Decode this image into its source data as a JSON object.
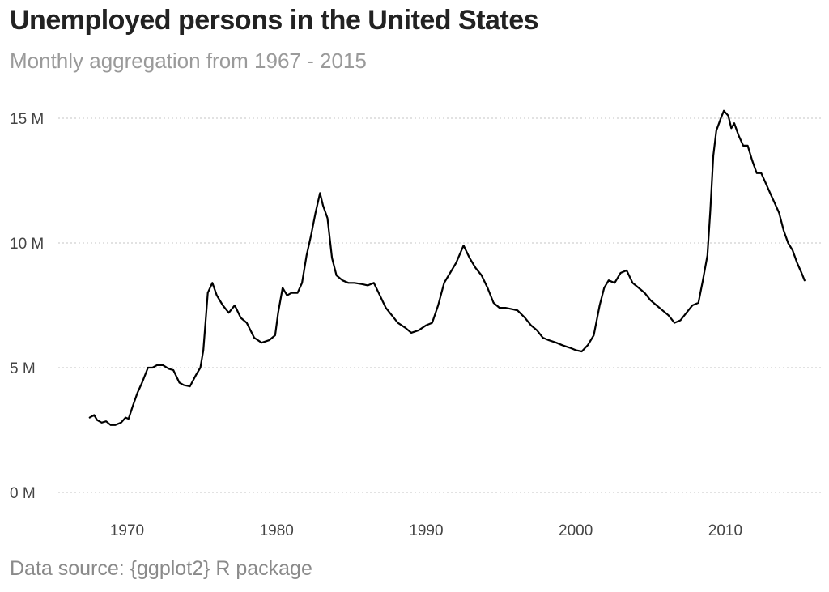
{
  "title": "Unemployed persons in the United States",
  "subtitle": "Monthly aggregation from 1967 - 2015",
  "caption": "Data source: {ggplot2} R package",
  "colors": {
    "line": "#000000",
    "title": "#222222",
    "subtitle": "#9a9a9a",
    "grid": "#c4c4c4"
  },
  "chart_data": {
    "type": "line",
    "title": "Unemployed persons in the United States",
    "subtitle": "Monthly aggregation from 1967 - 2015",
    "xlabel": "",
    "ylabel": "",
    "xlim": [
      1965.4,
      2016.5
    ],
    "ylim": [
      0,
      15000000
    ],
    "x_ticks": [
      1970,
      1980,
      1990,
      2000,
      2010
    ],
    "x_tick_labels": [
      "1970",
      "1980",
      "1990",
      "2000",
      "2010"
    ],
    "y_ticks": [
      0,
      5000000,
      10000000,
      15000000
    ],
    "y_tick_labels": [
      "0 M",
      "5 M",
      "10 M",
      "15 M"
    ],
    "grid": "horizontal dotted",
    "series": [
      {
        "name": "Unemployed persons",
        "unit": "millions",
        "x": [
          1967.5,
          1967.8,
          1968.0,
          1968.3,
          1968.6,
          1968.9,
          1969.2,
          1969.6,
          1969.9,
          1970.1,
          1970.4,
          1970.7,
          1971.0,
          1971.4,
          1971.7,
          1972.0,
          1972.4,
          1972.8,
          1973.1,
          1973.5,
          1973.8,
          1974.2,
          1974.6,
          1974.9,
          1975.1,
          1975.4,
          1975.7,
          1976.0,
          1976.4,
          1976.8,
          1977.2,
          1977.6,
          1978.0,
          1978.5,
          1979.0,
          1979.5,
          1979.9,
          1980.1,
          1980.4,
          1980.7,
          1981.0,
          1981.4,
          1981.7,
          1982.0,
          1982.3,
          1982.6,
          1982.9,
          1983.1,
          1983.4,
          1983.7,
          1984.0,
          1984.4,
          1984.8,
          1985.2,
          1985.7,
          1986.1,
          1986.5,
          1986.9,
          1987.3,
          1987.7,
          1988.1,
          1988.6,
          1989.0,
          1989.5,
          1990.0,
          1990.4,
          1990.8,
          1991.2,
          1991.6,
          1992.0,
          1992.5,
          1992.9,
          1993.3,
          1993.7,
          1994.1,
          1994.5,
          1994.9,
          1995.3,
          1995.7,
          1996.1,
          1996.6,
          1997.0,
          1997.4,
          1997.8,
          1998.2,
          1998.7,
          1999.1,
          1999.6,
          2000.0,
          2000.4,
          2000.8,
          2001.2,
          2001.6,
          2001.9,
          2002.2,
          2002.6,
          2003.0,
          2003.4,
          2003.8,
          2004.2,
          2004.6,
          2005.0,
          2005.4,
          2005.8,
          2006.2,
          2006.6,
          2007.0,
          2007.4,
          2007.8,
          2008.2,
          2008.5,
          2008.8,
          2009.0,
          2009.2,
          2009.4,
          2009.7,
          2009.9,
          2010.2,
          2010.4,
          2010.6,
          2010.9,
          2011.2,
          2011.5,
          2011.8,
          2012.1,
          2012.4,
          2012.7,
          2013.0,
          2013.3,
          2013.6,
          2013.9,
          2014.2,
          2014.5,
          2014.8,
          2015.1,
          2015.3
        ],
        "values": [
          3.0,
          3.1,
          2.9,
          2.8,
          2.85,
          2.7,
          2.7,
          2.8,
          3.0,
          2.95,
          3.5,
          4.0,
          4.4,
          5.0,
          5.0,
          5.1,
          5.1,
          4.95,
          4.9,
          4.4,
          4.3,
          4.25,
          4.7,
          5.0,
          5.7,
          8.0,
          8.4,
          7.9,
          7.5,
          7.2,
          7.5,
          7.0,
          6.8,
          6.2,
          6.0,
          6.1,
          6.3,
          7.2,
          8.2,
          7.9,
          8.0,
          8.0,
          8.4,
          9.5,
          10.3,
          11.2,
          12.0,
          11.5,
          11.0,
          9.4,
          8.7,
          8.5,
          8.4,
          8.4,
          8.35,
          8.3,
          8.4,
          7.9,
          7.4,
          7.1,
          6.8,
          6.6,
          6.4,
          6.5,
          6.7,
          6.8,
          7.5,
          8.4,
          8.8,
          9.2,
          9.9,
          9.4,
          9.0,
          8.7,
          8.2,
          7.6,
          7.4,
          7.4,
          7.35,
          7.3,
          7.0,
          6.7,
          6.5,
          6.2,
          6.1,
          6.0,
          5.9,
          5.8,
          5.7,
          5.65,
          5.9,
          6.3,
          7.5,
          8.2,
          8.5,
          8.4,
          8.8,
          8.9,
          8.4,
          8.2,
          8.0,
          7.7,
          7.5,
          7.3,
          7.1,
          6.8,
          6.9,
          7.2,
          7.5,
          7.6,
          8.5,
          9.5,
          11.3,
          13.5,
          14.5,
          15.0,
          15.3,
          15.1,
          14.6,
          14.8,
          14.3,
          13.9,
          13.9,
          13.3,
          12.8,
          12.8,
          12.4,
          12.0,
          11.6,
          11.2,
          10.5,
          10.0,
          9.7,
          9.2,
          8.8,
          8.5
        ]
      }
    ]
  }
}
